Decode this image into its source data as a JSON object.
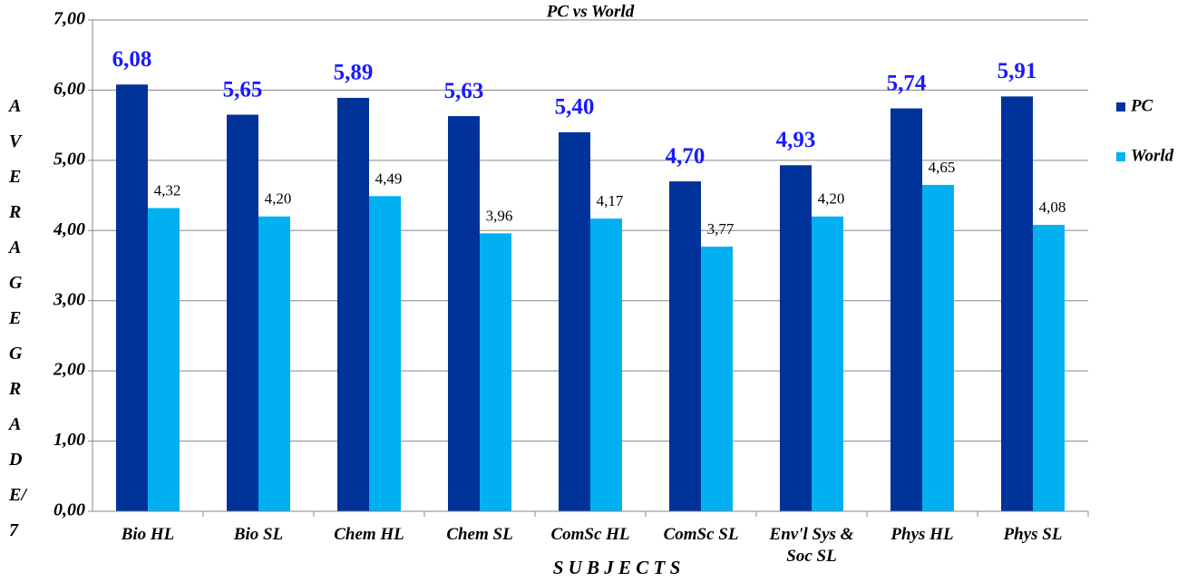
{
  "chart_data": {
    "type": "bar",
    "title": "PC vs World",
    "x_label": "S U B J E C T S",
    "y_label": "AVERAGE GRADE/7",
    "categories": [
      "Bio HL",
      "Bio SL",
      "Chem HL",
      "Chem SL",
      "ComSc HL",
      "ComSc SL",
      "Env'l Sys & Soc SL",
      "Phys HL",
      "Phys SL"
    ],
    "series": [
      {
        "name": "PC",
        "color": "#003399",
        "values": [
          6.08,
          5.65,
          5.89,
          5.63,
          5.4,
          4.7,
          4.93,
          5.74,
          5.91
        ],
        "value_labels": [
          "6,08",
          "5,65",
          "5,89",
          "5,63",
          "5,40",
          "4,70",
          "4,93",
          "5,74",
          "5,91"
        ]
      },
      {
        "name": "World",
        "color": "#00b0f0",
        "values": [
          4.32,
          4.2,
          4.49,
          3.96,
          4.17,
          3.77,
          4.2,
          4.65,
          4.08
        ],
        "value_labels": [
          "4,32",
          "4,20",
          "4,49",
          "3,96",
          "4,17",
          "3,77",
          "4,20",
          "4,65",
          "4,08"
        ]
      }
    ],
    "ylim": [
      0,
      7
    ],
    "yticks": [
      {
        "value": 0,
        "label": "0,00"
      },
      {
        "value": 1,
        "label": "1,00"
      },
      {
        "value": 2,
        "label": "2,00"
      },
      {
        "value": 3,
        "label": "3,00"
      },
      {
        "value": 4,
        "label": "4,00"
      },
      {
        "value": 5,
        "label": "5,00"
      },
      {
        "value": 6,
        "label": "6,00"
      },
      {
        "value": 7,
        "label": "7,00"
      }
    ],
    "grid": true,
    "legend": "right"
  }
}
